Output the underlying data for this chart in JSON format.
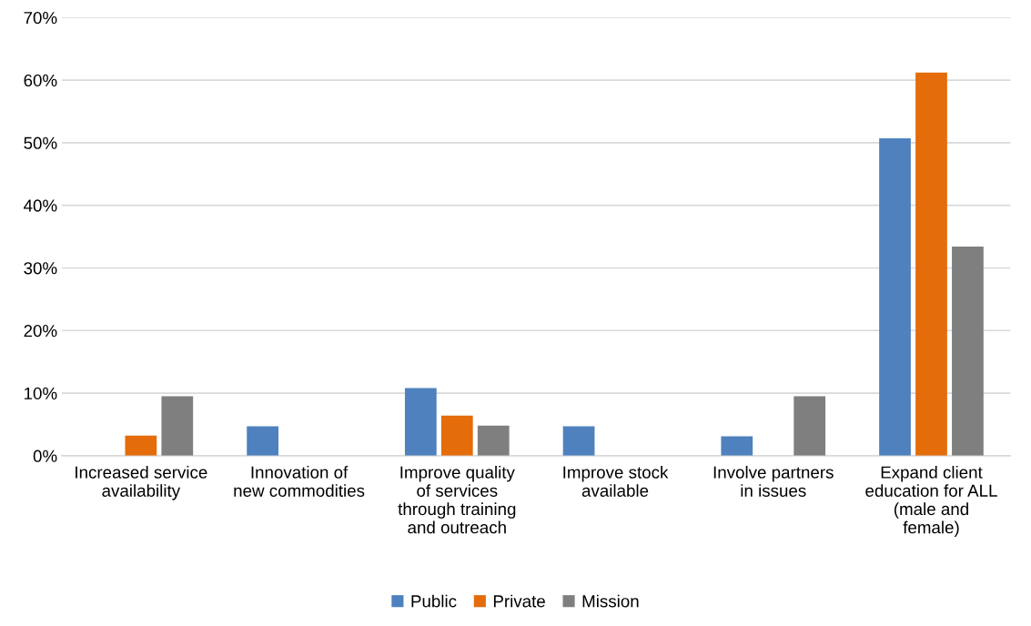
{
  "chart_data": {
    "type": "bar",
    "categories": [
      "Increased service\navailability",
      "Innovation of\nnew commodities",
      "Improve quality\nof services\nthrough training\nand outreach",
      "Improve stock\navailable",
      "Involve partners\nin issues",
      "Expand client\neducation for ALL\n(male and\nfemale)"
    ],
    "series": [
      {
        "name": "Public",
        "color": "#4e81bd",
        "values": [
          0,
          4.7,
          10.8,
          4.7,
          3.1,
          50.7
        ]
      },
      {
        "name": "Private",
        "color": "#e46c0a",
        "values": [
          3.2,
          0,
          6.4,
          0,
          0,
          61.2
        ]
      },
      {
        "name": "Mission",
        "color": "#7f7f7f",
        "values": [
          9.5,
          0,
          4.8,
          0,
          9.5,
          33.4
        ]
      }
    ],
    "ylim": [
      0,
      70
    ],
    "yticks": [
      {
        "value": 0,
        "label": "0%"
      },
      {
        "value": 10,
        "label": "10%"
      },
      {
        "value": 20,
        "label": "20%"
      },
      {
        "value": 30,
        "label": "30%"
      },
      {
        "value": 40,
        "label": "40%"
      },
      {
        "value": 50,
        "label": "50%"
      },
      {
        "value": 60,
        "label": "60%"
      },
      {
        "value": 70,
        "label": "70%"
      }
    ],
    "grid": "y",
    "legend": "bottom"
  }
}
